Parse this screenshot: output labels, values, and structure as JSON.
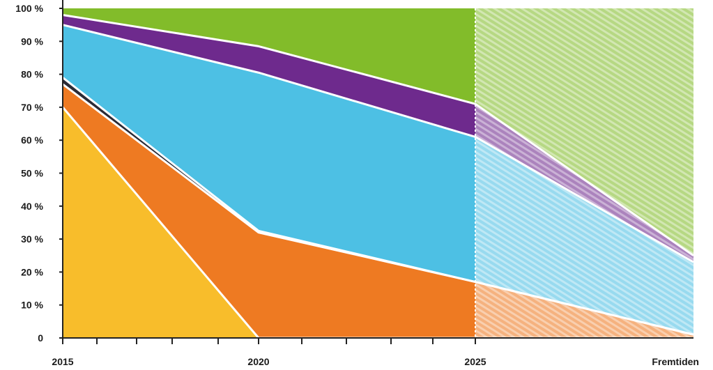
{
  "chart_data": {
    "type": "area",
    "stacked": true,
    "stack_mode": "percent",
    "x": [
      2015,
      2020,
      2025,
      "Fremtiden"
    ],
    "x_tick_labels": [
      "2015",
      "2020",
      "2025",
      "Fremtiden"
    ],
    "y_tick_labels": [
      "0",
      "10 %",
      "20 %",
      "30 %",
      "40 %",
      "50 %",
      "60 %",
      "70 %",
      "80 %",
      "90 %",
      "100 %"
    ],
    "ylim": [
      0,
      100
    ],
    "projection_from": 2025,
    "title": "",
    "xlabel": "",
    "ylabel": "",
    "legend": "none",
    "grid": false,
    "series": [
      {
        "color": "#F8BD2B",
        "values": [
          70,
          0,
          0,
          0
        ]
      },
      {
        "color": "#EE7A22",
        "values": [
          7,
          32,
          17,
          1
        ]
      },
      {
        "color": "#2B2B36",
        "values": [
          2,
          0.5,
          0,
          0
        ]
      },
      {
        "color": "#4DC0E4",
        "values": [
          16,
          48,
          44,
          22
        ]
      },
      {
        "color": "#6E2A8D",
        "values": [
          3,
          8,
          10,
          2
        ]
      },
      {
        "color": "#82BC2A",
        "values": [
          2,
          11.5,
          29,
          75
        ]
      }
    ]
  }
}
